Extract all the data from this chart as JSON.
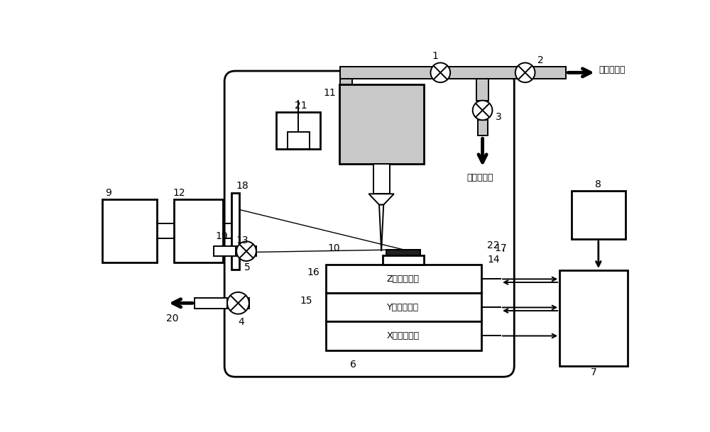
{
  "bg_color": "#ffffff",
  "gray": "#c8c8c8",
  "dark": "#303030",
  "text_buffer": "缓冲气入口",
  "text_reaction": "反应气入口",
  "text_z": "Z电控平移台",
  "text_y": "Y电控平移台",
  "text_x": "X电控平移台",
  "lw": 1.4,
  "lwt": 2.0,
  "fs": 10,
  "sfs": 9,
  "vr": 0.25,
  "figw": 10.0,
  "figh": 6.09
}
